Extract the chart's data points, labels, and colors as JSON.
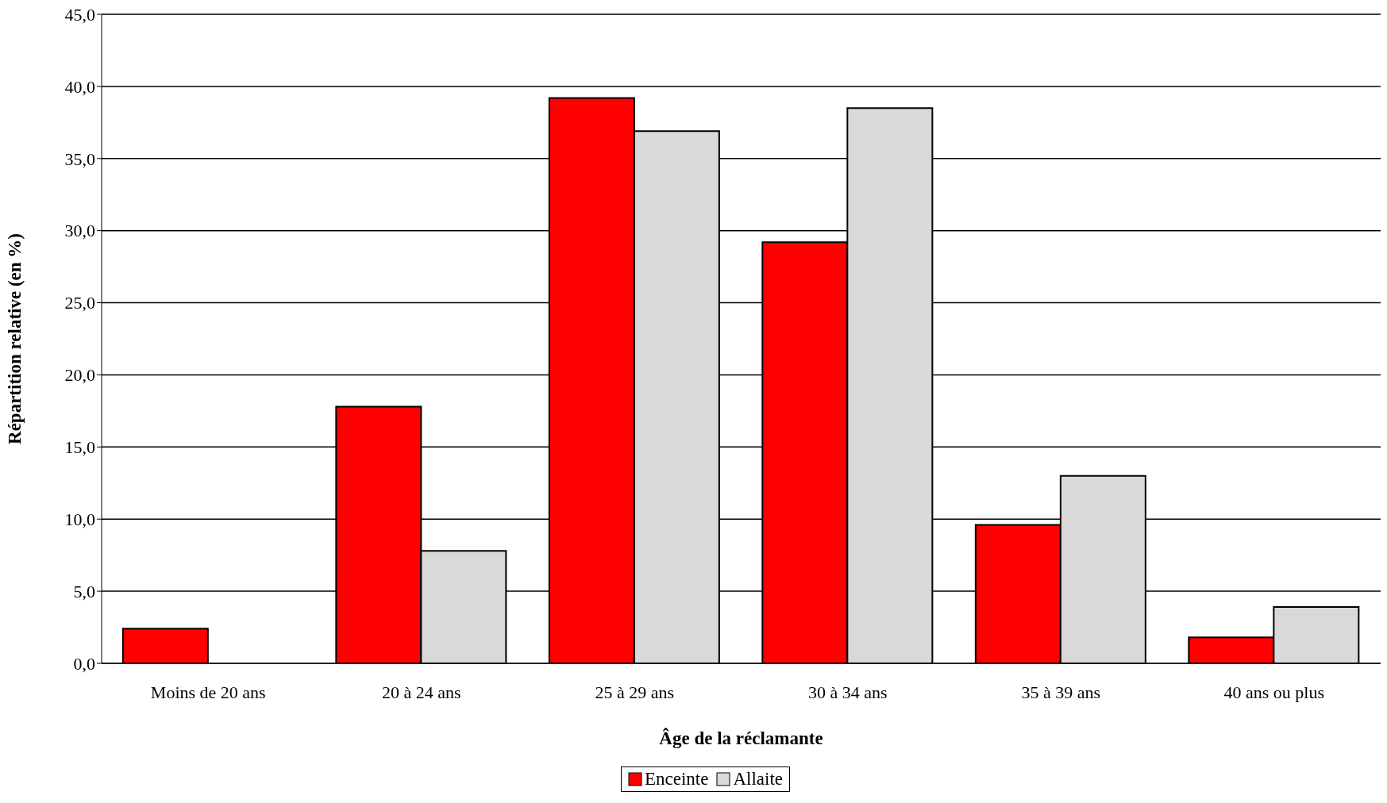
{
  "chart_data": {
    "type": "bar",
    "xlabel": "Âge de la réclamante",
    "ylabel": "Répartition relative (en %)",
    "categories": [
      "Moins de 20 ans",
      "20 à 24 ans",
      "25 à 29 ans",
      "30 à 34 ans",
      "35 à 39 ans",
      "40 ans ou plus"
    ],
    "series": [
      {
        "name": "Enceinte",
        "color": "#ff0000",
        "values": [
          2.4,
          17.8,
          39.2,
          29.2,
          9.6,
          1.8
        ]
      },
      {
        "name": "Allaite",
        "color": "#d9d9d9",
        "values": [
          null,
          7.8,
          36.9,
          38.5,
          13.0,
          3.9
        ]
      }
    ],
    "ylim": [
      0,
      45
    ],
    "yticks": [
      {
        "value": 0,
        "label": "0,0"
      },
      {
        "value": 5,
        "label": "5,0"
      },
      {
        "value": 10,
        "label": "10,0"
      },
      {
        "value": 15,
        "label": "15,0"
      },
      {
        "value": 20,
        "label": "20,0"
      },
      {
        "value": 25,
        "label": "25,0"
      },
      {
        "value": 30,
        "label": "30,0"
      },
      {
        "value": 35,
        "label": "35,0"
      },
      {
        "value": 40,
        "label": "40,0"
      },
      {
        "value": 45,
        "label": "45,0"
      }
    ],
    "grid": "y",
    "legend": "bottom"
  }
}
